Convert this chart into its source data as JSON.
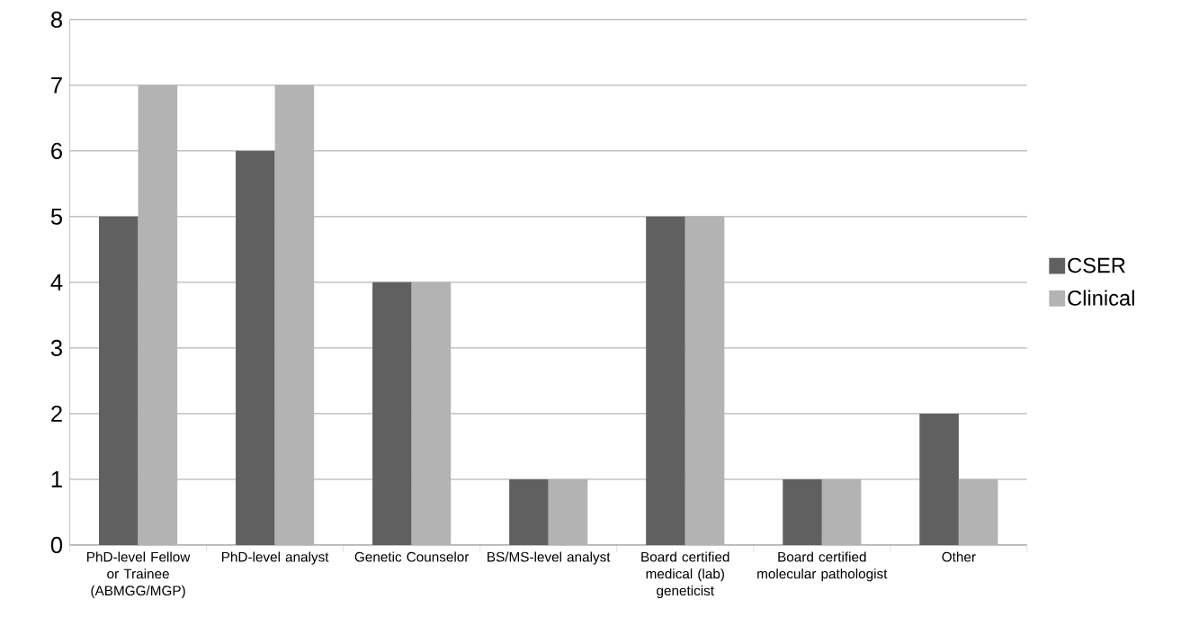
{
  "chart_data": {
    "type": "bar",
    "categories": [
      "PhD-level Fellow or Trainee (ABMGG/MGP)",
      "PhD-level analyst",
      "Genetic Counselor",
      "BS/MS-level analyst",
      "Board certified medical (lab) geneticist",
      "Board certified molecular pathologist",
      "Other"
    ],
    "series": [
      {
        "name": "CSER",
        "color": "#606060",
        "values": [
          5,
          6,
          4,
          1,
          5,
          1,
          2
        ]
      },
      {
        "name": "Clinical",
        "color": "#b3b3b3",
        "values": [
          7,
          7,
          4,
          1,
          5,
          1,
          1
        ]
      }
    ],
    "ylim": [
      0,
      8
    ],
    "yticks": [
      0,
      1,
      2,
      3,
      4,
      5,
      6,
      7,
      8
    ],
    "grid": "y",
    "legend": "right"
  }
}
